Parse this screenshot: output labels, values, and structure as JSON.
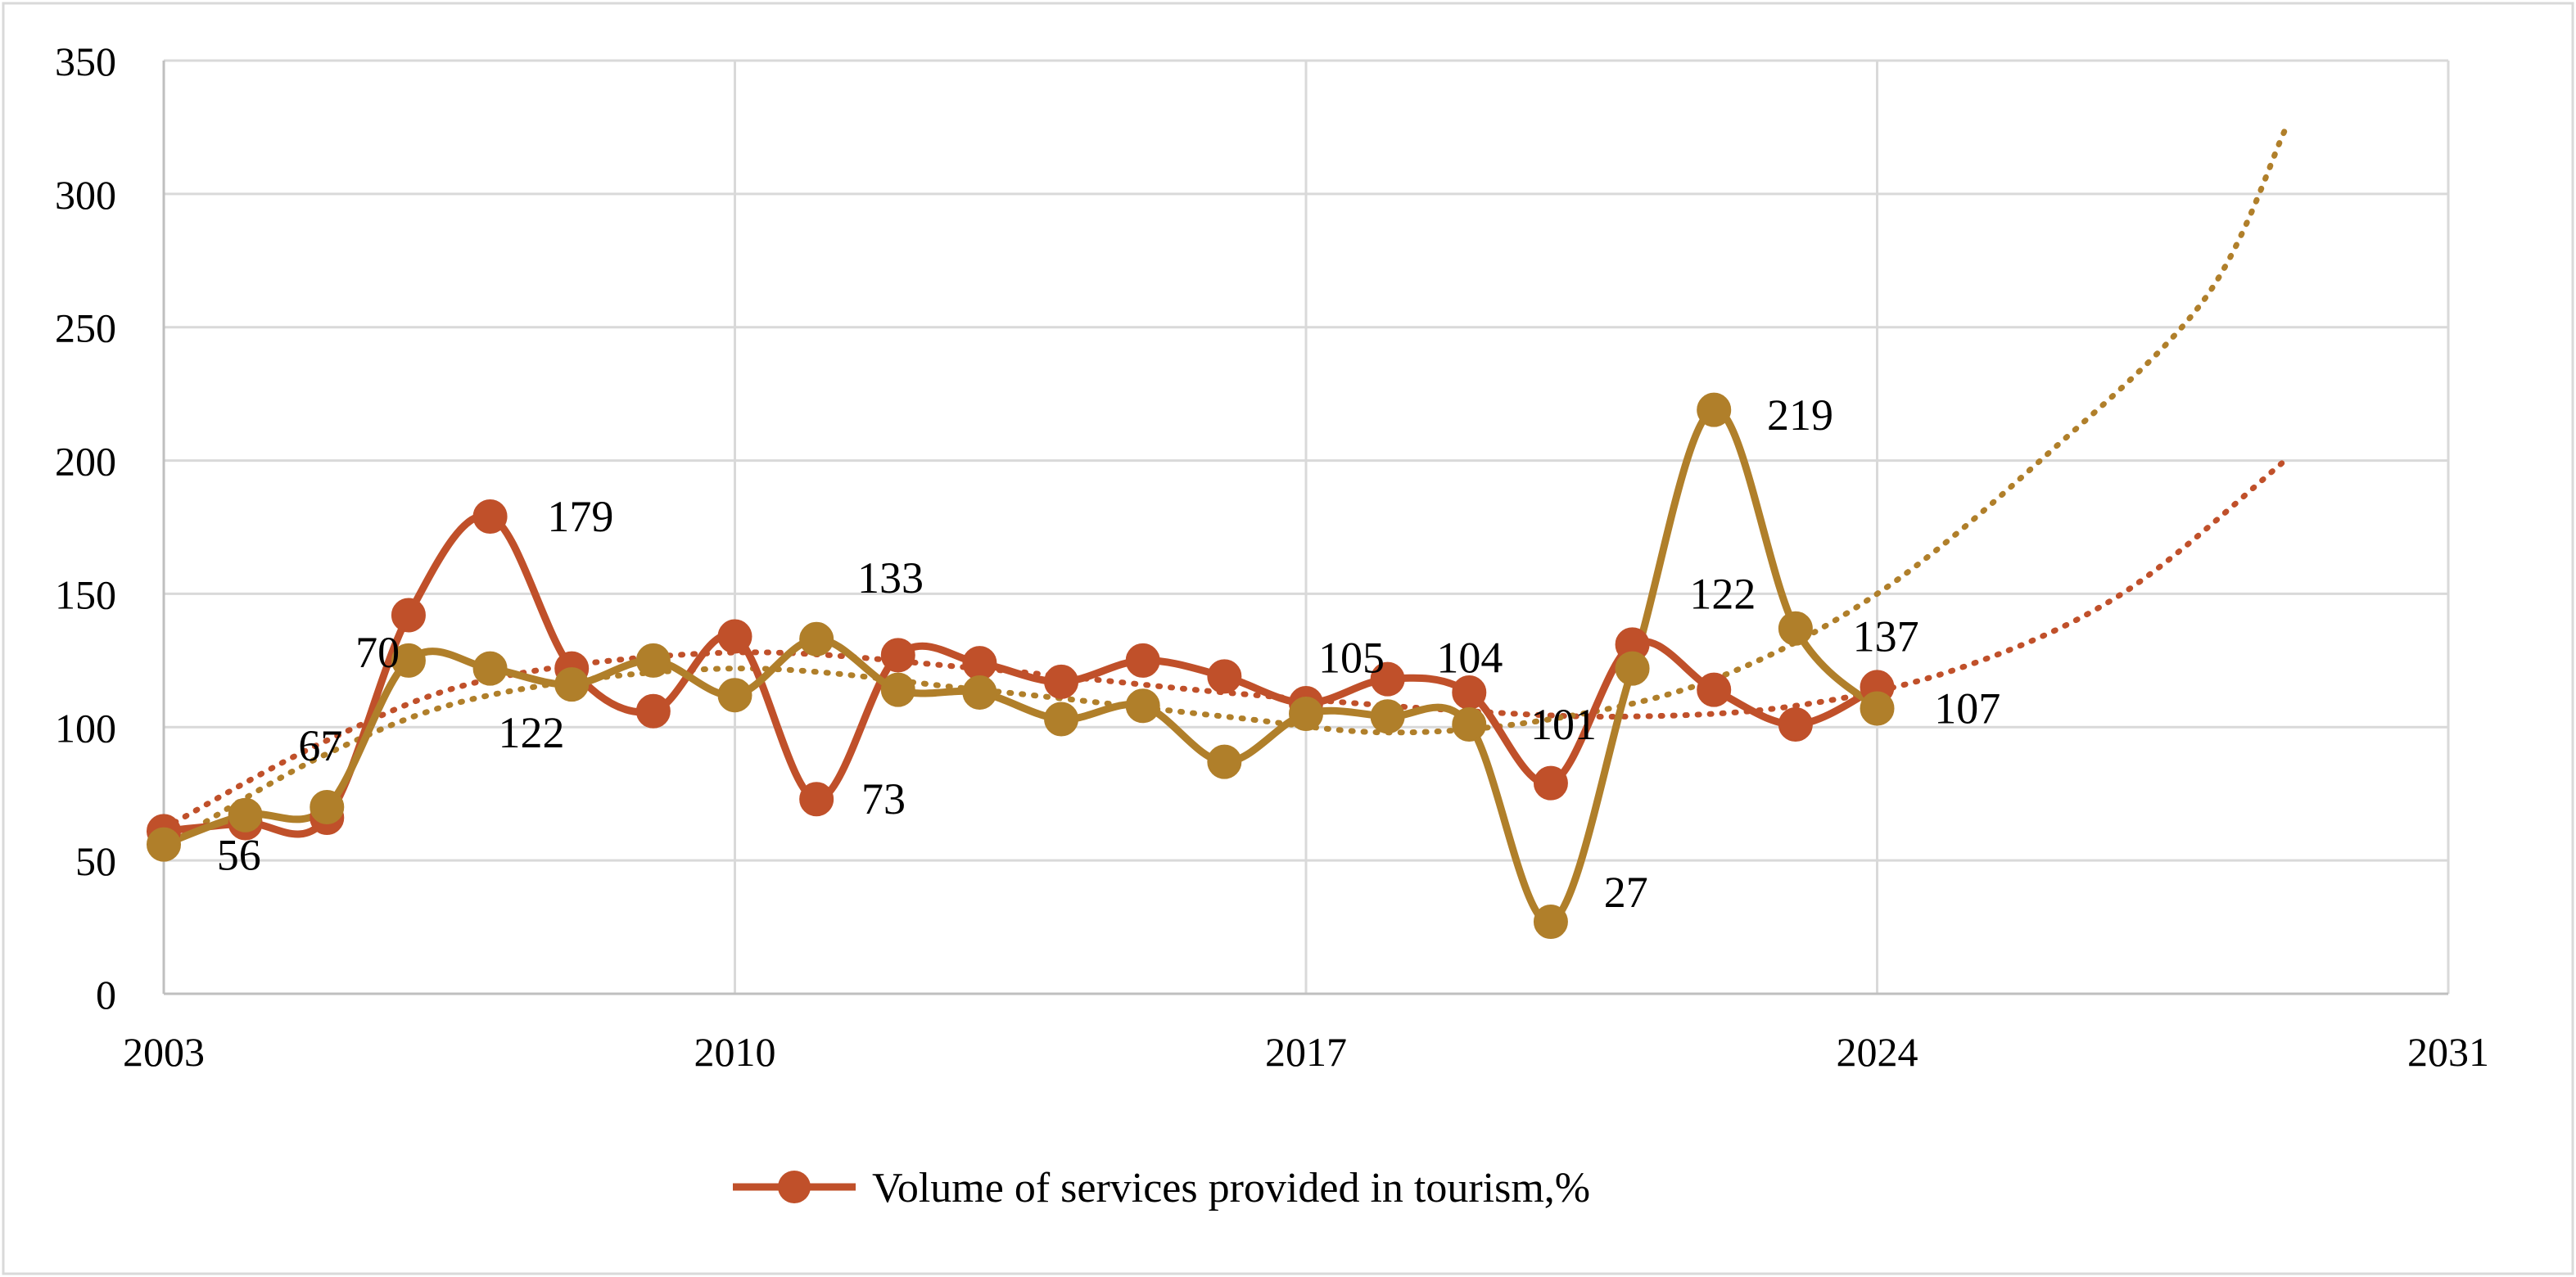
{
  "chart_data": {
    "type": "line",
    "title": "",
    "xlabel": "",
    "ylabel": "",
    "xlim": [
      2003,
      2031
    ],
    "ylim": [
      0,
      350
    ],
    "x_ticks": [
      2003,
      2010,
      2017,
      2024,
      2031
    ],
    "y_ticks": [
      0,
      50,
      100,
      150,
      200,
      250,
      300,
      350
    ],
    "grid": true,
    "legend_position": "bottom",
    "series": [
      {
        "name": "Volume of services provided in tourism,%",
        "color": "#c0502a",
        "marker": "circle",
        "smooth": true,
        "in_legend": true,
        "x": [
          2003,
          2004,
          2005,
          2006,
          2007,
          2008,
          2009,
          2010,
          2011,
          2012,
          2013,
          2014,
          2015,
          2016,
          2017,
          2018,
          2019,
          2020,
          2021,
          2022,
          2023,
          2024
        ],
        "values": [
          61,
          64,
          66,
          142,
          179,
          122,
          106,
          134,
          73,
          127,
          124,
          117,
          125,
          119,
          109,
          118,
          113,
          79,
          131,
          114,
          101,
          115
        ],
        "labels": [
          {
            "x": 2007,
            "y": 179,
            "text": "179",
            "anchor": "start",
            "dx": 0.7,
            "dy": 0
          },
          {
            "x": 2011,
            "y": 73,
            "text": "73",
            "anchor": "start",
            "dx": 0.55,
            "dy": 0
          }
        ]
      },
      {
        "name": "",
        "color": "#b07f2a",
        "marker": "circle",
        "smooth": true,
        "in_legend": false,
        "x": [
          2003,
          2004,
          2005,
          2006,
          2007,
          2008,
          2009,
          2010,
          2011,
          2012,
          2013,
          2014,
          2015,
          2016,
          2017,
          2018,
          2019,
          2020,
          2021,
          2022,
          2023,
          2024
        ],
        "values": [
          56,
          67,
          70,
          125,
          122,
          116,
          125,
          112,
          133,
          114,
          113,
          103,
          108,
          87,
          105,
          104,
          101,
          27,
          122,
          219,
          137,
          107
        ],
        "labels": [
          {
            "x": 2003,
            "y": 56,
            "text": "56",
            "anchor": "start",
            "dx": 0.65,
            "dy": -4
          },
          {
            "x": 2004,
            "y": 67,
            "text": "67",
            "anchor": "start",
            "dx": 0.65,
            "dy": 26
          },
          {
            "x": 2005,
            "y": 70,
            "text": "70",
            "anchor": "start",
            "dx": 0.35,
            "dy": 58
          },
          {
            "x": 2007,
            "y": 122,
            "text": "122",
            "anchor": "start",
            "dx": 0.1,
            "dy": -24
          },
          {
            "x": 2011,
            "y": 133,
            "text": "133",
            "anchor": "start",
            "dx": 0.5,
            "dy": 23
          },
          {
            "x": 2018,
            "y": 104,
            "text": "105",
            "anchor": "start",
            "dx": -0.85,
            "dy": 22
          },
          {
            "x": 2018,
            "y": 104,
            "text": "104",
            "anchor": "start",
            "dx": 0.6,
            "dy": 22
          },
          {
            "x": 2020,
            "y": 101,
            "text": "101",
            "anchor": "start",
            "dx": -0.25,
            "dy": 0
          },
          {
            "x": 2020,
            "y": 27,
            "text": "27",
            "anchor": "start",
            "dx": 0.65,
            "dy": 11
          },
          {
            "x": 2021,
            "y": 122,
            "text": "122",
            "anchor": "start",
            "dx": 0.7,
            "dy": 28
          },
          {
            "x": 2022,
            "y": 219,
            "text": "219",
            "anchor": "start",
            "dx": 0.65,
            "dy": -2
          },
          {
            "x": 2023,
            "y": 137,
            "text": "137",
            "anchor": "start",
            "dx": 0.7,
            "dy": -3
          },
          {
            "x": 2024,
            "y": 107,
            "text": "107",
            "anchor": "start",
            "dx": 0.7,
            "dy": 0
          }
        ]
      }
    ],
    "trendlines": [
      {
        "for_series": 0,
        "color": "#c0502a",
        "style": "dotted",
        "points": [
          [
            2003,
            62
          ],
          [
            2005,
            95
          ],
          [
            2007,
            118
          ],
          [
            2010,
            128
          ],
          [
            2013,
            122
          ],
          [
            2016,
            113
          ],
          [
            2019,
            106
          ],
          [
            2021,
            104
          ],
          [
            2023,
            108
          ],
          [
            2025,
            122
          ],
          [
            2027,
            150
          ],
          [
            2029,
            200
          ]
        ]
      },
      {
        "for_series": 1,
        "color": "#b07f2a",
        "style": "dotted",
        "points": [
          [
            2003,
            55
          ],
          [
            2005,
            90
          ],
          [
            2007,
            112
          ],
          [
            2010,
            122
          ],
          [
            2013,
            114
          ],
          [
            2016,
            104
          ],
          [
            2018,
            98
          ],
          [
            2020,
            103
          ],
          [
            2022,
            118
          ],
          [
            2024,
            150
          ],
          [
            2026,
            200
          ],
          [
            2028,
            260
          ],
          [
            2029,
            324
          ]
        ]
      }
    ]
  }
}
